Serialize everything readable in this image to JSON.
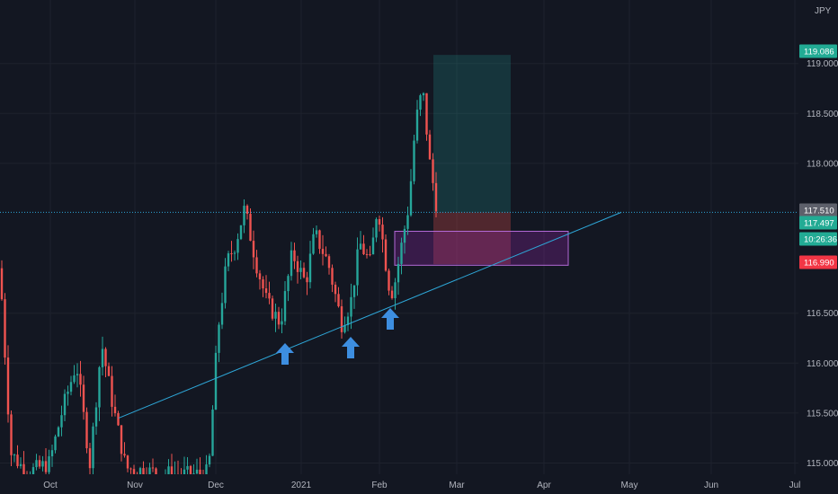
{
  "symbol_label": "JPY",
  "chart_data": {
    "type": "candlestick",
    "yaxis": {
      "ticks": [
        "119.000",
        "118.500",
        "118.000",
        "116.500",
        "116.000",
        "115.500",
        "115.000"
      ],
      "range": [
        114.92,
        119.55
      ]
    },
    "xaxis": {
      "labels": [
        "Oct",
        "Nov",
        "Dec",
        "2021",
        "Feb",
        "Mar",
        "Apr",
        "May",
        "Jun",
        "Jul"
      ]
    },
    "price_tags": [
      {
        "id": "target",
        "text": "119.086",
        "value": 119.086,
        "color": "#22ab94"
      },
      {
        "id": "last",
        "text": "117.510",
        "value": 117.51,
        "color": "#5d606b"
      },
      {
        "id": "bid",
        "text": "117.497",
        "value": 117.497,
        "color": "#22ab94"
      },
      {
        "id": "countdown",
        "text": "10:26:36",
        "value": 117.26,
        "color": "#22ab94"
      },
      {
        "id": "stop",
        "text": "116.990",
        "value": 116.99,
        "color": "#f23645"
      }
    ],
    "last_price_line": 117.51,
    "position": {
      "type": "long",
      "entry": 117.51,
      "target": 119.086,
      "stop": 116.99
    },
    "demand_zone": {
      "top": 117.32,
      "bottom": 116.98
    },
    "trendline": {
      "from": [
        115.45
      ],
      "to": [
        117.51
      ]
    },
    "markers": [
      "up-arrow",
      "up-arrow",
      "up-arrow"
    ],
    "colors": {
      "up": "#26a69a",
      "down": "#ef5350"
    }
  }
}
